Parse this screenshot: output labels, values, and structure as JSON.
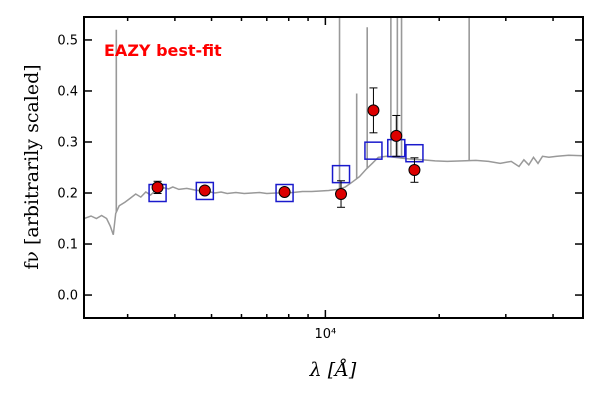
{
  "chart_data": {
    "type": "scatter",
    "title": "",
    "annotation": "EAZY best-fit",
    "annotation_color": "#ff0000",
    "xlabel": "λ [Å]",
    "ylabel": "fν [arbitrarily scaled]",
    "x_scale": "log",
    "xlim": [
      2300,
      48000
    ],
    "ylim": [
      -0.045,
      0.545
    ],
    "yticks": [
      0.0,
      0.1,
      0.2,
      0.3,
      0.4,
      0.5
    ],
    "ytick_labels": [
      "0.0",
      "0.1",
      "0.2",
      "0.3",
      "0.4",
      "0.5"
    ],
    "xtick_label": "10⁴",
    "xtick_value": 10000,
    "grid": false,
    "series": [
      {
        "kind": "observed",
        "color": "#dd0000",
        "points": [
          {
            "x": 3600,
            "y": 0.211,
            "err": 0.012
          },
          {
            "x": 4800,
            "y": 0.205,
            "err": 0.006
          },
          {
            "x": 7800,
            "y": 0.202,
            "err": 0.005
          },
          {
            "x": 11000,
            "y": 0.198,
            "err": 0.026
          },
          {
            "x": 13400,
            "y": 0.362,
            "err": 0.044
          },
          {
            "x": 15400,
            "y": 0.312,
            "err": 0.04
          },
          {
            "x": 17200,
            "y": 0.245,
            "err": 0.024
          }
        ]
      },
      {
        "kind": "model_photometry",
        "color": "#1a1acc",
        "points": [
          {
            "x": 3600,
            "y": 0.2
          },
          {
            "x": 4800,
            "y": 0.204
          },
          {
            "x": 7800,
            "y": 0.2
          },
          {
            "x": 11000,
            "y": 0.237
          },
          {
            "x": 13400,
            "y": 0.283
          },
          {
            "x": 15400,
            "y": 0.288
          },
          {
            "x": 17200,
            "y": 0.278
          }
        ]
      },
      {
        "kind": "template_spectrum",
        "color": "#999999",
        "points": [
          {
            "x": 2300,
            "y": 0.15
          },
          {
            "x": 2400,
            "y": 0.155
          },
          {
            "x": 2480,
            "y": 0.15
          },
          {
            "x": 2560,
            "y": 0.156
          },
          {
            "x": 2640,
            "y": 0.15
          },
          {
            "x": 2700,
            "y": 0.135
          },
          {
            "x": 2750,
            "y": 0.118
          },
          {
            "x": 2790,
            "y": 0.16
          },
          {
            "x": 2850,
            "y": 0.175
          },
          {
            "x": 2950,
            "y": 0.182
          },
          {
            "x": 3050,
            "y": 0.19
          },
          {
            "x": 3150,
            "y": 0.198
          },
          {
            "x": 3250,
            "y": 0.192
          },
          {
            "x": 3350,
            "y": 0.202
          },
          {
            "x": 3450,
            "y": 0.196
          },
          {
            "x": 3550,
            "y": 0.205
          },
          {
            "x": 3650,
            "y": 0.208
          },
          {
            "x": 3750,
            "y": 0.21
          },
          {
            "x": 3850,
            "y": 0.208
          },
          {
            "x": 3950,
            "y": 0.212
          },
          {
            "x": 4100,
            "y": 0.207
          },
          {
            "x": 4300,
            "y": 0.209
          },
          {
            "x": 4500,
            "y": 0.206
          },
          {
            "x": 4700,
            "y": 0.204
          },
          {
            "x": 4900,
            "y": 0.203
          },
          {
            "x": 5100,
            "y": 0.2
          },
          {
            "x": 5300,
            "y": 0.202
          },
          {
            "x": 5500,
            "y": 0.199
          },
          {
            "x": 5800,
            "y": 0.201
          },
          {
            "x": 6100,
            "y": 0.199
          },
          {
            "x": 6400,
            "y": 0.2
          },
          {
            "x": 6700,
            "y": 0.201
          },
          {
            "x": 7000,
            "y": 0.199
          },
          {
            "x": 7400,
            "y": 0.2
          },
          {
            "x": 7800,
            "y": 0.2
          },
          {
            "x": 8200,
            "y": 0.201
          },
          {
            "x": 8700,
            "y": 0.203
          },
          {
            "x": 9200,
            "y": 0.203
          },
          {
            "x": 9700,
            "y": 0.204
          },
          {
            "x": 10200,
            "y": 0.205
          },
          {
            "x": 10800,
            "y": 0.207
          },
          {
            "x": 11300,
            "y": 0.212
          },
          {
            "x": 11800,
            "y": 0.222
          },
          {
            "x": 12300,
            "y": 0.232
          },
          {
            "x": 12800,
            "y": 0.246
          },
          {
            "x": 13300,
            "y": 0.258
          },
          {
            "x": 13800,
            "y": 0.27
          },
          {
            "x": 14500,
            "y": 0.272
          },
          {
            "x": 15200,
            "y": 0.27
          },
          {
            "x": 16000,
            "y": 0.268
          },
          {
            "x": 17000,
            "y": 0.266
          },
          {
            "x": 18000,
            "y": 0.265
          },
          {
            "x": 19500,
            "y": 0.263
          },
          {
            "x": 21000,
            "y": 0.262
          },
          {
            "x": 23000,
            "y": 0.263
          },
          {
            "x": 25000,
            "y": 0.264
          },
          {
            "x": 27000,
            "y": 0.262
          },
          {
            "x": 29000,
            "y": 0.258
          },
          {
            "x": 31000,
            "y": 0.262
          },
          {
            "x": 32500,
            "y": 0.252
          },
          {
            "x": 33500,
            "y": 0.265
          },
          {
            "x": 34500,
            "y": 0.255
          },
          {
            "x": 35500,
            "y": 0.27
          },
          {
            "x": 36500,
            "y": 0.258
          },
          {
            "x": 37500,
            "y": 0.272
          },
          {
            "x": 39000,
            "y": 0.27
          },
          {
            "x": 41000,
            "y": 0.272
          },
          {
            "x": 44000,
            "y": 0.274
          },
          {
            "x": 48000,
            "y": 0.273
          }
        ],
        "emission_lines": [
          {
            "x": 2800,
            "y": 0.52
          },
          {
            "x": 10900,
            "y": 0.545
          },
          {
            "x": 12100,
            "y": 0.395
          },
          {
            "x": 12900,
            "y": 0.525
          },
          {
            "x": 14900,
            "y": 0.545
          },
          {
            "x": 15500,
            "y": 0.545
          },
          {
            "x": 15900,
            "y": 0.545
          },
          {
            "x": 24000,
            "y": 0.545
          }
        ]
      }
    ]
  }
}
